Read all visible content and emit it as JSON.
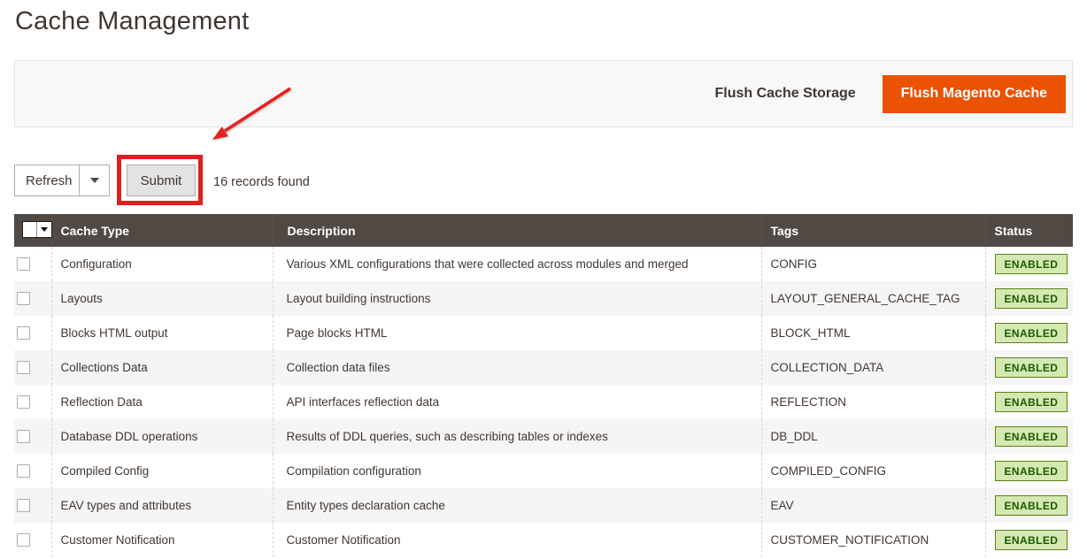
{
  "page": {
    "title": "Cache Management"
  },
  "header_actions": {
    "flush_cache_storage": "Flush Cache Storage",
    "flush_magento_cache": "Flush Magento Cache"
  },
  "toolbar": {
    "action_select_value": "Refresh",
    "submit_label": "Submit",
    "records_text": "16 records found"
  },
  "table": {
    "columns": [
      "Cache Type",
      "Description",
      "Tags",
      "Status"
    ],
    "rows": [
      {
        "cache_type": "Configuration",
        "description": "Various XML configurations that were collected across modules and merged",
        "tags": "CONFIG",
        "status": "ENABLED"
      },
      {
        "cache_type": "Layouts",
        "description": "Layout building instructions",
        "tags": "LAYOUT_GENERAL_CACHE_TAG",
        "status": "ENABLED"
      },
      {
        "cache_type": "Blocks HTML output",
        "description": "Page blocks HTML",
        "tags": "BLOCK_HTML",
        "status": "ENABLED"
      },
      {
        "cache_type": "Collections Data",
        "description": "Collection data files",
        "tags": "COLLECTION_DATA",
        "status": "ENABLED"
      },
      {
        "cache_type": "Reflection Data",
        "description": "API interfaces reflection data",
        "tags": "REFLECTION",
        "status": "ENABLED"
      },
      {
        "cache_type": "Database DDL operations",
        "description": "Results of DDL queries, such as describing tables or indexes",
        "tags": "DB_DDL",
        "status": "ENABLED"
      },
      {
        "cache_type": "Compiled Config",
        "description": "Compilation configuration",
        "tags": "COMPILED_CONFIG",
        "status": "ENABLED"
      },
      {
        "cache_type": "EAV types and attributes",
        "description": "Entity types declaration cache",
        "tags": "EAV",
        "status": "ENABLED"
      },
      {
        "cache_type": "Customer Notification",
        "description": "Customer Notification",
        "tags": "CUSTOMER_NOTIFICATION",
        "status": "ENABLED"
      }
    ]
  },
  "colors": {
    "primary_button": "#eb5202",
    "annotation_red": "#e01e1e",
    "grid_header_bg": "#514943",
    "badge_bg": "#d6e8b2",
    "badge_border": "#5b8116",
    "badge_text": "#185b00",
    "panel_bg": "#f8f8f8"
  }
}
